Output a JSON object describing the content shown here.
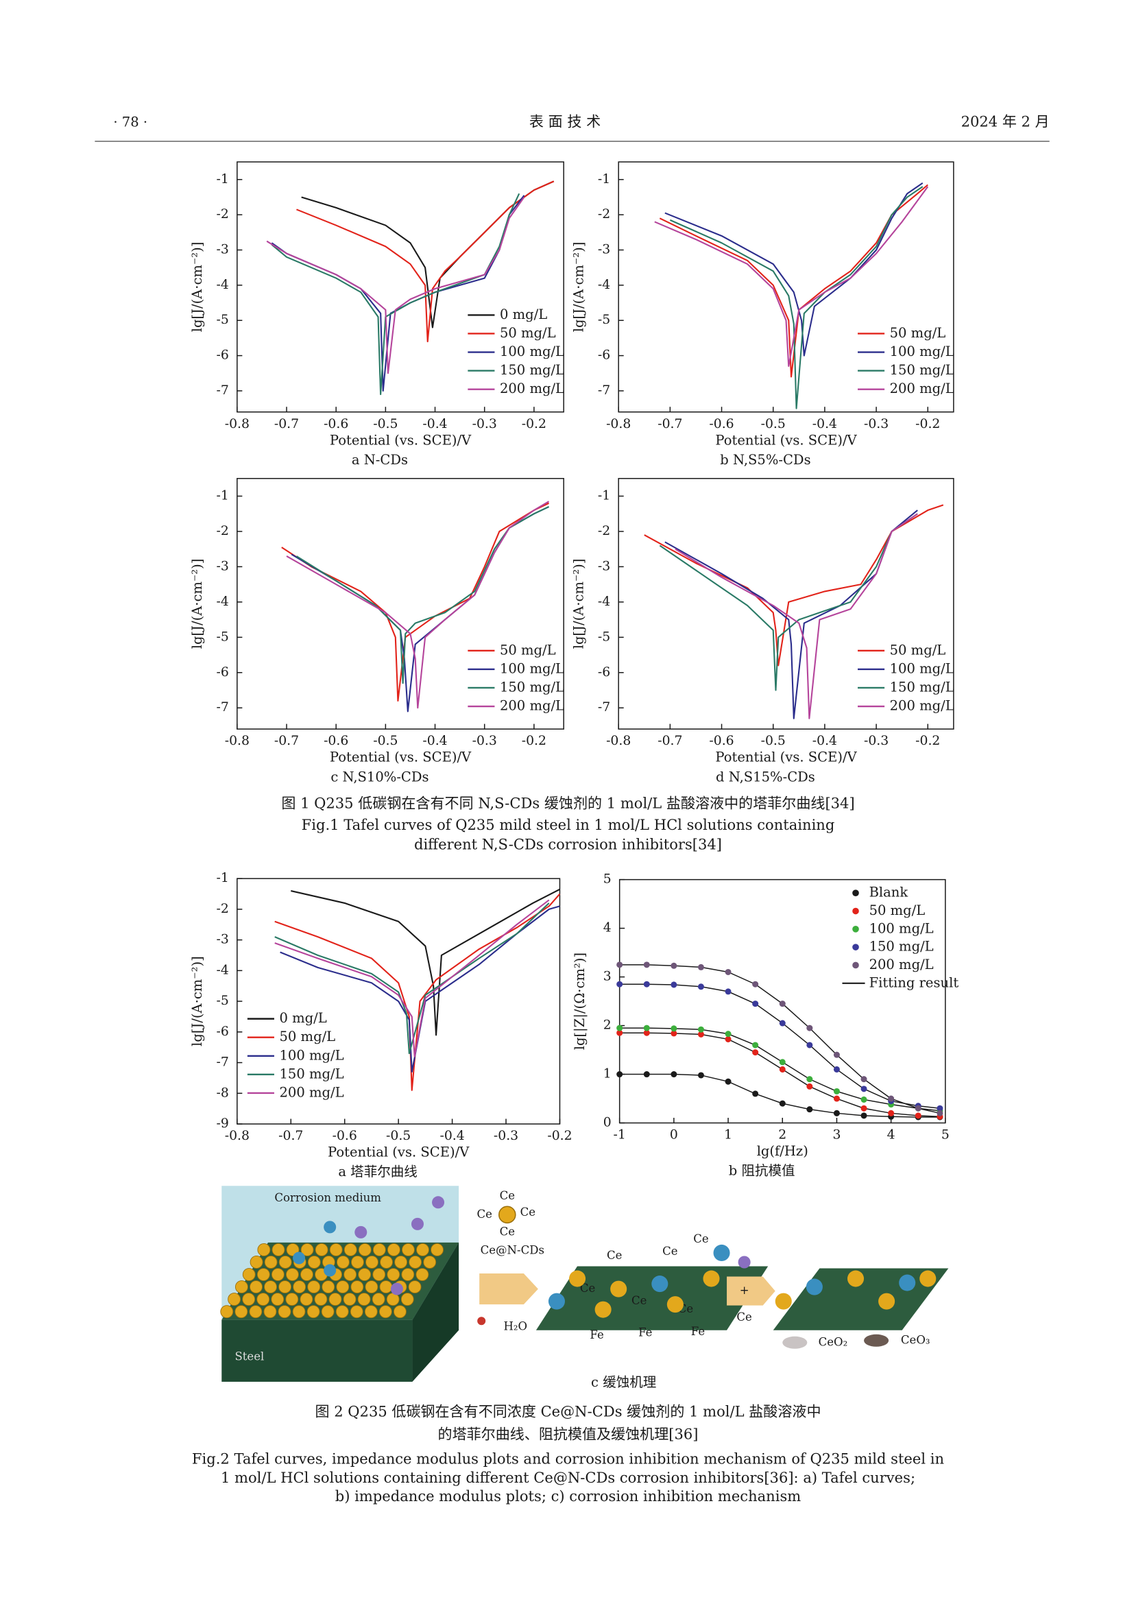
{
  "header": {
    "page": "· 78 ·",
    "journal": "表 面 技 术",
    "date": "2024 年 2 月"
  },
  "chart_data": [
    {
      "type": "line",
      "subtitle": "a N-CDs",
      "xlabel": "Potential (vs. SCE)/V",
      "ylabel": "lg[J/(A·cm⁻²)]",
      "xlim": [
        -0.8,
        -0.14
      ],
      "ylim": [
        -7.6,
        -0.5
      ],
      "xticks": [
        -0.8,
        -0.7,
        -0.6,
        -0.5,
        -0.4,
        -0.3,
        -0.2
      ],
      "yticks": [
        -7,
        -6,
        -5,
        -4,
        -3,
        -2,
        -1
      ],
      "legend": "lower right",
      "series": [
        {
          "name": "0 mg/L",
          "color": "#1a1a1a",
          "x": [
            -0.67,
            -0.6,
            -0.5,
            -0.45,
            -0.42,
            -0.405,
            -0.39,
            -0.35,
            -0.3,
            -0.25,
            -0.2,
            -0.16
          ],
          "values": [
            -1.5,
            -1.8,
            -2.3,
            -2.8,
            -3.5,
            -5.2,
            -3.8,
            -3.2,
            -2.5,
            -1.8,
            -1.3,
            -1.05
          ]
        },
        {
          "name": "50 mg/L",
          "color": "#e2231a",
          "x": [
            -0.68,
            -0.6,
            -0.5,
            -0.45,
            -0.42,
            -0.415,
            -0.405,
            -0.38,
            -0.35,
            -0.3,
            -0.25,
            -0.2,
            -0.16
          ],
          "values": [
            -1.85,
            -2.3,
            -2.9,
            -3.4,
            -4.0,
            -5.6,
            -4.1,
            -3.6,
            -3.2,
            -2.5,
            -1.8,
            -1.3,
            -1.05
          ]
        },
        {
          "name": "100 mg/L",
          "color": "#2b2d8c",
          "x": [
            -0.73,
            -0.7,
            -0.6,
            -0.55,
            -0.51,
            -0.505,
            -0.49,
            -0.45,
            -0.4,
            -0.3,
            -0.27,
            -0.25,
            -0.22
          ],
          "values": [
            -2.8,
            -3.1,
            -3.7,
            -4.1,
            -4.8,
            -7.0,
            -4.8,
            -4.5,
            -4.2,
            -3.8,
            -3.0,
            -2.0,
            -1.45
          ]
        },
        {
          "name": "150 mg/L",
          "color": "#2a7a66",
          "x": [
            -0.73,
            -0.7,
            -0.6,
            -0.55,
            -0.515,
            -0.51,
            -0.5,
            -0.45,
            -0.4,
            -0.3,
            -0.27,
            -0.25,
            -0.23
          ],
          "values": [
            -2.85,
            -3.2,
            -3.8,
            -4.2,
            -4.9,
            -7.1,
            -4.9,
            -4.5,
            -4.2,
            -3.7,
            -2.9,
            -2.0,
            -1.4
          ]
        },
        {
          "name": "200 mg/L",
          "color": "#b5449b",
          "x": [
            -0.74,
            -0.7,
            -0.6,
            -0.55,
            -0.5,
            -0.495,
            -0.48,
            -0.45,
            -0.4,
            -0.3,
            -0.27,
            -0.25,
            -0.22
          ],
          "values": [
            -2.75,
            -3.1,
            -3.7,
            -4.1,
            -4.7,
            -6.5,
            -4.7,
            -4.4,
            -4.1,
            -3.7,
            -3.0,
            -2.1,
            -1.5
          ]
        }
      ]
    },
    {
      "type": "line",
      "subtitle": "b N,S5%-CDs",
      "xlabel": "Potential (vs. SCE)/V",
      "ylabel": "lg[J/(A·cm⁻²)]",
      "xlim": [
        -0.8,
        -0.15
      ],
      "ylim": [
        -7.6,
        -0.5
      ],
      "xticks": [
        -0.8,
        -0.7,
        -0.6,
        -0.5,
        -0.4,
        -0.3,
        -0.2
      ],
      "yticks": [
        -7,
        -6,
        -5,
        -4,
        -3,
        -2,
        -1
      ],
      "legend": "lower right",
      "series": [
        {
          "name": "50 mg/L",
          "color": "#e2231a",
          "x": [
            -0.72,
            -0.65,
            -0.55,
            -0.5,
            -0.47,
            -0.465,
            -0.45,
            -0.4,
            -0.35,
            -0.3,
            -0.27,
            -0.22,
            -0.2
          ],
          "values": [
            -2.1,
            -2.6,
            -3.3,
            -4.0,
            -5.0,
            -6.6,
            -4.7,
            -4.1,
            -3.6,
            -2.8,
            -2.0,
            -1.4,
            -1.15
          ]
        },
        {
          "name": "100 mg/L",
          "color": "#2b2d8c",
          "x": [
            -0.71,
            -0.6,
            -0.5,
            -0.46,
            -0.445,
            -0.44,
            -0.42,
            -0.35,
            -0.3,
            -0.27,
            -0.24,
            -0.21
          ],
          "values": [
            -1.95,
            -2.6,
            -3.4,
            -4.2,
            -5.0,
            -6.0,
            -4.6,
            -3.8,
            -3.0,
            -2.1,
            -1.4,
            -1.1
          ]
        },
        {
          "name": "150 mg/L",
          "color": "#2a7a66",
          "x": [
            -0.7,
            -0.6,
            -0.5,
            -0.47,
            -0.46,
            -0.455,
            -0.44,
            -0.4,
            -0.35,
            -0.3,
            -0.27,
            -0.24,
            -0.21
          ],
          "values": [
            -2.15,
            -2.8,
            -3.6,
            -4.3,
            -5.1,
            -7.5,
            -4.8,
            -4.2,
            -3.7,
            -2.9,
            -2.0,
            -1.5,
            -1.2
          ]
        },
        {
          "name": "200 mg/L",
          "color": "#b5449b",
          "x": [
            -0.73,
            -0.65,
            -0.55,
            -0.5,
            -0.475,
            -0.47,
            -0.45,
            -0.4,
            -0.35,
            -0.3,
            -0.25,
            -0.22,
            -0.2
          ],
          "values": [
            -2.2,
            -2.7,
            -3.4,
            -4.1,
            -5.0,
            -6.3,
            -4.7,
            -4.2,
            -3.8,
            -3.1,
            -2.2,
            -1.6,
            -1.2
          ]
        }
      ]
    },
    {
      "type": "line",
      "subtitle": "c N,S10%-CDs",
      "xlabel": "Potential (vs. SCE)/V",
      "ylabel": "lg[J/(A·cm⁻²)]",
      "xlim": [
        -0.8,
        -0.14
      ],
      "ylim": [
        -7.6,
        -0.5
      ],
      "xticks": [
        -0.8,
        -0.7,
        -0.6,
        -0.5,
        -0.4,
        -0.3,
        -0.2
      ],
      "yticks": [
        -7,
        -6,
        -5,
        -4,
        -3,
        -2,
        -1
      ],
      "legend": "lower right",
      "series": [
        {
          "name": "50 mg/L",
          "color": "#e2231a",
          "x": [
            -0.71,
            -0.65,
            -0.55,
            -0.5,
            -0.48,
            -0.475,
            -0.46,
            -0.4,
            -0.33,
            -0.3,
            -0.27,
            -0.2,
            -0.17
          ],
          "values": [
            -2.45,
            -3.0,
            -3.7,
            -4.3,
            -5.0,
            -6.8,
            -5.0,
            -4.4,
            -3.9,
            -3.0,
            -2.0,
            -1.4,
            -1.2
          ]
        },
        {
          "name": "100 mg/L",
          "color": "#2b2d8c",
          "x": [
            -0.69,
            -0.6,
            -0.52,
            -0.47,
            -0.462,
            -0.455,
            -0.44,
            -0.38,
            -0.32,
            -0.28,
            -0.25,
            -0.2,
            -0.17
          ],
          "values": [
            -2.65,
            -3.4,
            -4.1,
            -4.8,
            -5.6,
            -7.1,
            -5.2,
            -4.5,
            -3.8,
            -2.6,
            -1.9,
            -1.5,
            -1.3
          ]
        },
        {
          "name": "150 mg/L",
          "color": "#2a7a66",
          "x": [
            -0.68,
            -0.6,
            -0.52,
            -0.47,
            -0.465,
            -0.46,
            -0.44,
            -0.38,
            -0.32,
            -0.28,
            -0.25,
            -0.2,
            -0.17
          ],
          "values": [
            -2.7,
            -3.4,
            -4.1,
            -4.8,
            -6.3,
            -4.9,
            -4.6,
            -4.3,
            -3.7,
            -2.5,
            -1.9,
            -1.5,
            -1.3
          ]
        },
        {
          "name": "200 mg/L",
          "color": "#b5449b",
          "x": [
            -0.7,
            -0.6,
            -0.5,
            -0.45,
            -0.44,
            -0.435,
            -0.42,
            -0.38,
            -0.32,
            -0.28,
            -0.25,
            -0.2,
            -0.17
          ],
          "values": [
            -2.7,
            -3.5,
            -4.3,
            -4.9,
            -5.6,
            -7.0,
            -5.0,
            -4.5,
            -3.8,
            -2.6,
            -1.9,
            -1.4,
            -1.15
          ]
        }
      ]
    },
    {
      "type": "line",
      "subtitle": "d N,S15%-CDs",
      "xlabel": "Potential (vs. SCE)/V",
      "ylabel": "lg[J/(A·cm⁻²)]",
      "xlim": [
        -0.8,
        -0.15
      ],
      "ylim": [
        -7.6,
        -0.5
      ],
      "xticks": [
        -0.8,
        -0.7,
        -0.6,
        -0.5,
        -0.4,
        -0.3,
        -0.2
      ],
      "yticks": [
        -7,
        -6,
        -5,
        -4,
        -3,
        -2,
        -1
      ],
      "legend": "lower right",
      "series": [
        {
          "name": "50 mg/L",
          "color": "#e2231a",
          "x": [
            -0.75,
            -0.65,
            -0.55,
            -0.5,
            -0.495,
            -0.49,
            -0.47,
            -0.4,
            -0.33,
            -0.3,
            -0.27,
            -0.2,
            -0.17
          ],
          "values": [
            -2.1,
            -2.9,
            -3.6,
            -4.3,
            -4.8,
            -5.8,
            -4.0,
            -3.7,
            -3.5,
            -2.8,
            -2.0,
            -1.4,
            -1.25
          ]
        },
        {
          "name": "100 mg/L",
          "color": "#2b2d8c",
          "x": [
            -0.71,
            -0.6,
            -0.52,
            -0.47,
            -0.465,
            -0.46,
            -0.44,
            -0.37,
            -0.3,
            -0.27,
            -0.22
          ],
          "values": [
            -2.3,
            -3.2,
            -3.9,
            -4.5,
            -5.2,
            -7.3,
            -4.6,
            -4.1,
            -3.2,
            -2.0,
            -1.4
          ]
        },
        {
          "name": "150 mg/L",
          "color": "#2a7a66",
          "x": [
            -0.72,
            -0.62,
            -0.55,
            -0.5,
            -0.495,
            -0.49,
            -0.45,
            -0.35,
            -0.3,
            -0.27,
            -0.22
          ],
          "values": [
            -2.4,
            -3.4,
            -4.1,
            -4.8,
            -6.5,
            -5.0,
            -4.5,
            -4.0,
            -3.0,
            -2.0,
            -1.5
          ]
        },
        {
          "name": "200 mg/L",
          "color": "#b5449b",
          "x": [
            -0.69,
            -0.6,
            -0.5,
            -0.45,
            -0.435,
            -0.43,
            -0.41,
            -0.35,
            -0.3,
            -0.27,
            -0.22
          ],
          "values": [
            -2.5,
            -3.3,
            -4.1,
            -4.6,
            -5.3,
            -7.3,
            -4.5,
            -4.2,
            -3.2,
            -2.0,
            -1.5
          ]
        }
      ]
    },
    {
      "type": "line",
      "subtitle": "a 塔菲尔曲线",
      "xlabel": "Potential (vs. SCE)/V",
      "ylabel": "lg[J/(A·cm⁻²)]",
      "xlim": [
        -0.8,
        -0.2
      ],
      "ylim": [
        -9,
        -1
      ],
      "xticks": [
        -0.8,
        -0.7,
        -0.6,
        -0.5,
        -0.4,
        -0.3,
        -0.2
      ],
      "yticks": [
        -9,
        -8,
        -7,
        -6,
        -5,
        -4,
        -3,
        -2,
        -1
      ],
      "legend": "lower left",
      "series": [
        {
          "name": "0 mg/L",
          "color": "#1a1a1a",
          "x": [
            -0.7,
            -0.6,
            -0.5,
            -0.45,
            -0.435,
            -0.43,
            -0.42,
            -0.35,
            -0.3,
            -0.25,
            -0.2
          ],
          "values": [
            -1.4,
            -1.8,
            -2.4,
            -3.2,
            -4.5,
            -6.1,
            -3.5,
            -2.8,
            -2.3,
            -1.8,
            -1.35
          ]
        },
        {
          "name": "50 mg/L",
          "color": "#e2231a",
          "x": [
            -0.73,
            -0.65,
            -0.55,
            -0.5,
            -0.48,
            -0.475,
            -0.46,
            -0.43,
            -0.35,
            -0.28,
            -0.22,
            -0.2
          ],
          "values": [
            -2.4,
            -2.9,
            -3.6,
            -4.4,
            -5.5,
            -7.9,
            -5.0,
            -4.3,
            -3.3,
            -2.6,
            -1.9,
            -1.5
          ]
        },
        {
          "name": "100 mg/L",
          "color": "#2b2d8c",
          "x": [
            -0.72,
            -0.65,
            -0.55,
            -0.5,
            -0.48,
            -0.475,
            -0.45,
            -0.35,
            -0.28,
            -0.22,
            -0.2
          ],
          "values": [
            -3.4,
            -3.9,
            -4.4,
            -5.0,
            -5.6,
            -7.3,
            -5.0,
            -3.8,
            -2.8,
            -2.0,
            -1.9
          ]
        },
        {
          "name": "150 mg/L",
          "color": "#2a7a66",
          "x": [
            -0.73,
            -0.65,
            -0.55,
            -0.5,
            -0.485,
            -0.48,
            -0.45,
            -0.35,
            -0.28,
            -0.22
          ],
          "values": [
            -2.9,
            -3.5,
            -4.1,
            -4.7,
            -5.4,
            -6.7,
            -4.8,
            -3.6,
            -2.8,
            -1.8
          ]
        },
        {
          "name": "200 mg/L",
          "color": "#b5449b",
          "x": [
            -0.73,
            -0.65,
            -0.55,
            -0.5,
            -0.475,
            -0.47,
            -0.45,
            -0.35,
            -0.28,
            -0.22
          ],
          "values": [
            -3.1,
            -3.6,
            -4.2,
            -4.8,
            -5.5,
            -6.8,
            -4.9,
            -3.5,
            -2.5,
            -1.7
          ]
        }
      ]
    },
    {
      "type": "scatter",
      "subtitle": "b 阻抗模值",
      "xlabel": "lg(f/Hz)",
      "ylabel": "lg[|Z|/(Ω·cm²)]",
      "xlim": [
        -1,
        5
      ],
      "ylim": [
        0,
        5
      ],
      "xticks": [
        -1,
        0,
        1,
        2,
        3,
        4,
        5
      ],
      "yticks": [
        0,
        1,
        2,
        3,
        4,
        5
      ],
      "legend": "upper right",
      "fit_label": "Fitting result",
      "x": [
        -1,
        -0.5,
        0,
        0.5,
        1,
        1.5,
        2,
        2.5,
        3,
        3.5,
        4,
        4.5,
        4.9
      ],
      "series": [
        {
          "name": "Blank",
          "color": "#1a1a1a",
          "values": [
            1.0,
            1.0,
            1.0,
            0.98,
            0.85,
            0.6,
            0.4,
            0.28,
            0.2,
            0.15,
            0.13,
            0.12,
            0.12
          ]
        },
        {
          "name": "50 mg/L",
          "color": "#e2231a",
          "values": [
            1.85,
            1.85,
            1.84,
            1.82,
            1.72,
            1.45,
            1.1,
            0.75,
            0.5,
            0.3,
            0.2,
            0.15,
            0.13
          ]
        },
        {
          "name": "100 mg/L",
          "color": "#3cae3c",
          "values": [
            1.95,
            1.95,
            1.94,
            1.92,
            1.83,
            1.6,
            1.25,
            0.9,
            0.65,
            0.48,
            0.38,
            0.3,
            0.25
          ]
        },
        {
          "name": "150 mg/L",
          "color": "#3a3a9a",
          "values": [
            2.85,
            2.85,
            2.84,
            2.8,
            2.7,
            2.45,
            2.05,
            1.6,
            1.1,
            0.7,
            0.45,
            0.35,
            0.3
          ]
        },
        {
          "name": "200 mg/L",
          "color": "#6e5678",
          "values": [
            3.25,
            3.25,
            3.23,
            3.2,
            3.1,
            2.85,
            2.45,
            1.95,
            1.4,
            0.9,
            0.5,
            0.3,
            0.2
          ]
        }
      ]
    }
  ],
  "figure1_caption": {
    "cn": "图 1    Q235 低碳钢在含有不同 N,S-CDs 缓蚀剂的 1 mol/L 盐酸溶液中的塔菲尔曲线[34]",
    "en": [
      "Fig.1 Tafel curves of Q235 mild steel in 1 mol/L HCl solutions containing",
      "different N,S-CDs corrosion inhibitors[34]"
    ]
  },
  "diagram": {
    "corrosion_medium": "Corrosion medium",
    "steel": "Steel",
    "ce_labels": [
      "Ce",
      "Ce",
      "Ce",
      "Ce"
    ],
    "inhibitor": "Ce@N-CDs",
    "water": "H₂O",
    "fe_labels": [
      "Fe",
      "Fe",
      "Fe"
    ],
    "particle_labels": [
      "Ce",
      "Ce",
      "Ce",
      "Ce",
      "Ce",
      "Ce"
    ],
    "plus": "+",
    "ce": "Ce",
    "ceo2": "CeO₂",
    "ceo3": "CeO₃",
    "caption": "c 缓蚀机理"
  },
  "figure2_caption": {
    "cn": [
      "图 2    Q235 低碳钢在含有不同浓度 Ce@N-CDs 缓蚀剂的 1 mol/L 盐酸溶液中",
      "的塔菲尔曲线、阻抗模值及缓蚀机理[36]"
    ],
    "en": [
      "Fig.2 Tafel curves, impedance modulus plots and corrosion inhibition mechanism of Q235 mild steel in",
      "1 mol/L HCl solutions containing different Ce@N-CDs corrosion inhibitors[36]: a) Tafel curves;",
      "b) impedance modulus plots; c) corrosion inhibition mechanism"
    ]
  }
}
